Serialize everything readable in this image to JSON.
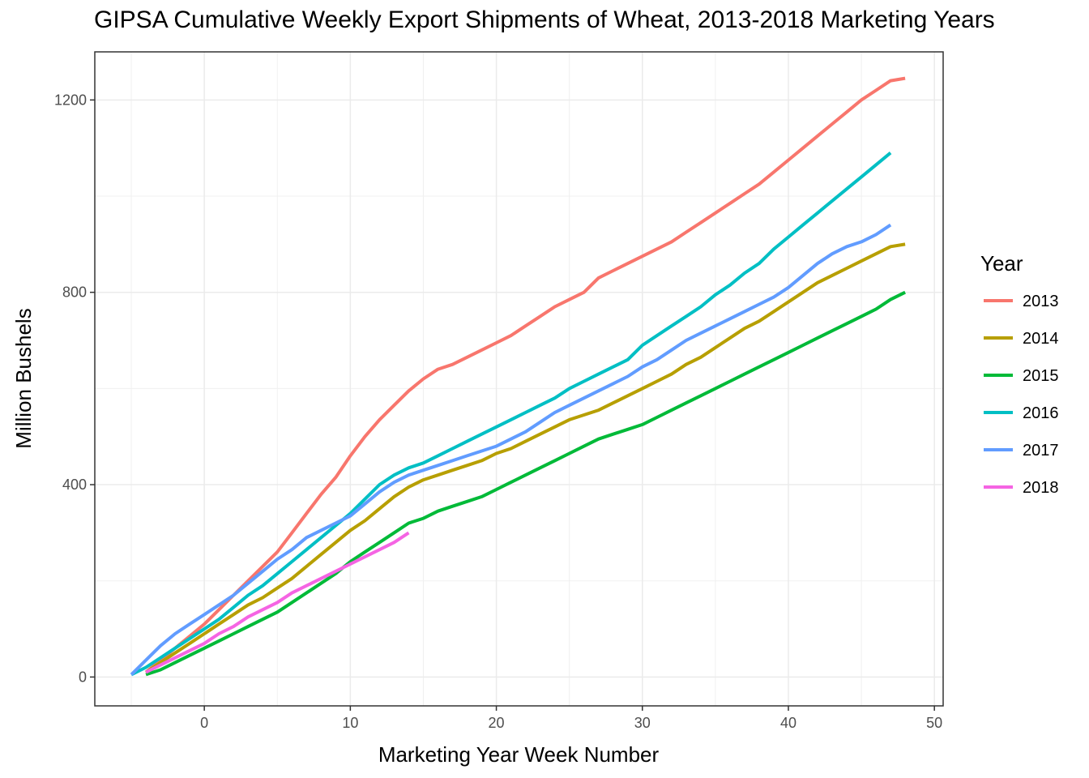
{
  "chart_data": {
    "type": "line",
    "title": "GIPSA Cumulative Weekly Export Shipments of Wheat, 2013-2018 Marketing Years",
    "xlabel": "Marketing Year Week Number",
    "ylabel": "Million Bushels",
    "xlim": [
      -7.5,
      50.6
    ],
    "ylim": [
      -60,
      1300
    ],
    "x_ticks": [
      0,
      10,
      20,
      30,
      40,
      50
    ],
    "y_ticks": [
      0,
      400,
      800,
      1200
    ],
    "grid": true,
    "legend": {
      "title": "Year",
      "placement": "right"
    },
    "series": [
      {
        "name": "2013",
        "color": "#F8766D",
        "x": [
          -4,
          -3,
          -2,
          -1,
          0,
          1,
          2,
          3,
          4,
          5,
          6,
          7,
          8,
          9,
          10,
          11,
          12,
          13,
          14,
          15,
          16,
          17,
          18,
          19,
          20,
          21,
          22,
          23,
          24,
          25,
          26,
          27,
          28,
          29,
          30,
          31,
          32,
          33,
          34,
          35,
          36,
          37,
          38,
          39,
          40,
          41,
          42,
          43,
          44,
          45,
          46,
          47,
          48
        ],
        "values": [
          10,
          35,
          60,
          85,
          110,
          140,
          170,
          200,
          230,
          260,
          300,
          340,
          380,
          415,
          460,
          500,
          535,
          565,
          595,
          620,
          640,
          650,
          665,
          680,
          695,
          710,
          730,
          750,
          770,
          785,
          800,
          830,
          845,
          860,
          875,
          890,
          905,
          925,
          945,
          965,
          985,
          1005,
          1025,
          1050,
          1075,
          1100,
          1125,
          1150,
          1175,
          1200,
          1220,
          1240,
          1245
        ]
      },
      {
        "name": "2014",
        "color": "#B79F00",
        "x": [
          -4,
          -3,
          -2,
          -1,
          0,
          1,
          2,
          3,
          4,
          5,
          6,
          7,
          8,
          9,
          10,
          11,
          12,
          13,
          14,
          15,
          16,
          17,
          18,
          19,
          20,
          21,
          22,
          23,
          24,
          25,
          26,
          27,
          28,
          29,
          30,
          31,
          32,
          33,
          34,
          35,
          36,
          37,
          38,
          39,
          40,
          41,
          42,
          43,
          44,
          45,
          46,
          47,
          48
        ],
        "values": [
          10,
          30,
          50,
          70,
          90,
          110,
          130,
          150,
          165,
          185,
          205,
          230,
          255,
          280,
          305,
          325,
          350,
          375,
          395,
          410,
          420,
          430,
          440,
          450,
          465,
          475,
          490,
          505,
          520,
          535,
          545,
          555,
          570,
          585,
          600,
          615,
          630,
          650,
          665,
          685,
          705,
          725,
          740,
          760,
          780,
          800,
          820,
          835,
          850,
          865,
          880,
          895,
          900
        ]
      },
      {
        "name": "2015",
        "color": "#00BA38",
        "x": [
          -4,
          -3,
          -2,
          -1,
          0,
          1,
          2,
          3,
          4,
          5,
          6,
          7,
          8,
          9,
          10,
          11,
          12,
          13,
          14,
          15,
          16,
          17,
          18,
          19,
          20,
          21,
          22,
          23,
          24,
          25,
          26,
          27,
          28,
          29,
          30,
          31,
          32,
          33,
          34,
          35,
          36,
          37,
          38,
          39,
          40,
          41,
          42,
          43,
          44,
          45,
          46,
          47,
          48
        ],
        "values": [
          5,
          15,
          30,
          45,
          60,
          75,
          90,
          105,
          120,
          135,
          155,
          175,
          195,
          215,
          240,
          260,
          280,
          300,
          320,
          330,
          345,
          355,
          365,
          375,
          390,
          405,
          420,
          435,
          450,
          465,
          480,
          495,
          505,
          515,
          525,
          540,
          555,
          570,
          585,
          600,
          615,
          630,
          645,
          660,
          675,
          690,
          705,
          720,
          735,
          750,
          765,
          785,
          800
        ]
      },
      {
        "name": "2016",
        "color": "#00BFC4",
        "x": [
          -5,
          -4,
          -3,
          -2,
          -1,
          0,
          1,
          2,
          3,
          4,
          5,
          6,
          7,
          8,
          9,
          10,
          11,
          12,
          13,
          14,
          15,
          16,
          17,
          18,
          19,
          20,
          21,
          22,
          23,
          24,
          25,
          26,
          27,
          28,
          29,
          30,
          31,
          32,
          33,
          34,
          35,
          36,
          37,
          38,
          39,
          40,
          41,
          42,
          43,
          44,
          45,
          46,
          47
        ],
        "values": [
          5,
          20,
          40,
          60,
          80,
          100,
          120,
          145,
          170,
          190,
          215,
          240,
          265,
          290,
          315,
          340,
          370,
          400,
          420,
          435,
          445,
          460,
          475,
          490,
          505,
          520,
          535,
          550,
          565,
          580,
          600,
          615,
          630,
          645,
          660,
          690,
          710,
          730,
          750,
          770,
          795,
          815,
          840,
          860,
          890,
          915,
          940,
          965,
          990,
          1015,
          1040,
          1065,
          1090
        ]
      },
      {
        "name": "2017",
        "color": "#619CFF",
        "x": [
          -5,
          -4,
          -3,
          -2,
          -1,
          0,
          1,
          2,
          3,
          4,
          5,
          6,
          7,
          8,
          9,
          10,
          11,
          12,
          13,
          14,
          15,
          16,
          17,
          18,
          19,
          20,
          21,
          22,
          23,
          24,
          25,
          26,
          27,
          28,
          29,
          30,
          31,
          32,
          33,
          34,
          35,
          36,
          37,
          38,
          39,
          40,
          41,
          42,
          43,
          44,
          45,
          46,
          47
        ],
        "values": [
          5,
          35,
          65,
          90,
          110,
          130,
          150,
          170,
          195,
          220,
          245,
          265,
          290,
          305,
          320,
          335,
          360,
          385,
          405,
          420,
          430,
          440,
          450,
          460,
          470,
          480,
          495,
          510,
          530,
          550,
          565,
          580,
          595,
          610,
          625,
          645,
          660,
          680,
          700,
          715,
          730,
          745,
          760,
          775,
          790,
          810,
          835,
          860,
          880,
          895,
          905,
          920,
          940
        ]
      },
      {
        "name": "2018",
        "color": "#F564E3",
        "x": [
          -4,
          -3,
          -2,
          -1,
          0,
          1,
          2,
          3,
          4,
          5,
          6,
          7,
          8,
          9,
          10,
          11,
          12,
          13,
          14
        ],
        "values": [
          10,
          25,
          40,
          55,
          70,
          90,
          105,
          125,
          140,
          155,
          175,
          190,
          205,
          220,
          235,
          250,
          265,
          280,
          300
        ]
      }
    ]
  }
}
